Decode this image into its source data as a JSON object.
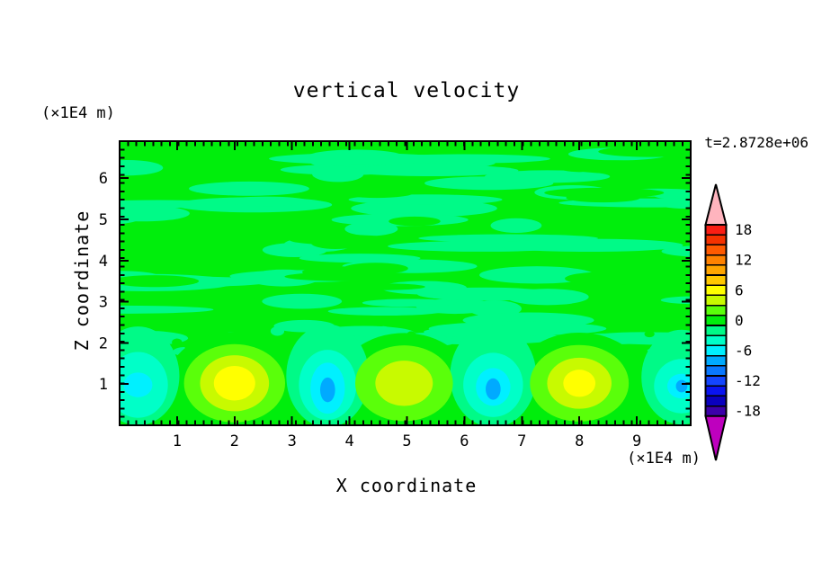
{
  "figure": {
    "title": "vertical velocity",
    "timestamp": "t=2.8728e+06",
    "background_color": "#ffffff"
  },
  "axes": {
    "x": {
      "title": "X coordinate",
      "unit": "(×1E4 m)",
      "min": 0,
      "max": 9.94,
      "major_ticks": [
        1,
        2,
        3,
        4,
        5,
        6,
        7,
        8,
        9
      ]
    },
    "z": {
      "title": "Z coordinate",
      "unit": "(×1E4 m)",
      "min": 0,
      "max": 6.9,
      "major_ticks": [
        1,
        2,
        3,
        4,
        5,
        6
      ]
    }
  },
  "colorbar": {
    "labels": [
      18,
      12,
      6,
      0,
      -6,
      -12,
      -18
    ],
    "over_color": "#FFB4BE",
    "under_color": "#BE00BE",
    "levels": [
      {
        "value": 18,
        "color": "#FA1E14"
      },
      {
        "value": 16,
        "color": "#F53200"
      },
      {
        "value": 14,
        "color": "#FF5A00"
      },
      {
        "value": 12,
        "color": "#FF8200"
      },
      {
        "value": 10,
        "color": "#FFA500"
      },
      {
        "value": 8,
        "color": "#FFC800"
      },
      {
        "value": 6,
        "color": "#FFFF00"
      },
      {
        "value": 4,
        "color": "#C8FA00"
      },
      {
        "value": 2,
        "color": "#5AFF0A"
      },
      {
        "value": 0,
        "color": "#00EE0C"
      },
      {
        "value": -2,
        "color": "#00FA87"
      },
      {
        "value": -4,
        "color": "#00FFC8"
      },
      {
        "value": -6,
        "color": "#00F0FF"
      },
      {
        "value": -8,
        "color": "#00AAFF"
      },
      {
        "value": -10,
        "color": "#0A78FF"
      },
      {
        "value": -12,
        "color": "#1446FF"
      },
      {
        "value": -14,
        "color": "#0A14F0"
      },
      {
        "value": -16,
        "color": "#0A00BE"
      },
      {
        "value": -18,
        "color": "#3C00AA"
      }
    ]
  },
  "chart_data": {
    "type": "heatmap",
    "subtype": "filled-contour",
    "title": "vertical velocity",
    "xlabel": "X coordinate (×1E4 m)",
    "ylabel": "Z coordinate (×1E4 m)",
    "xlim": [
      0,
      9.94
    ],
    "ylim": [
      0,
      6.9
    ],
    "annotations": [
      "t=2.8728e+06"
    ],
    "contour_interval": 2,
    "value_range": [
      -19,
      19
    ],
    "field_summary": "Near-zero vertical velocity (levels 0 and -2) in streaky horizontal bands for z > 2; row of alternating warm updraft and cool downdraft convective plumes centered near z ≈ 1",
    "texture": {
      "seed": 1234,
      "streaks": 64,
      "holes": 22,
      "speckles": 26,
      "base_color": "#00EE0C",
      "band_color": "#00FA87"
    },
    "warm_plumes": [
      {
        "x": 2.0,
        "z": 1.02,
        "peak": 6,
        "rings": [
          {
            "level": 2,
            "rx": 0.88,
            "rz": 0.95
          },
          {
            "level": 4,
            "rx": 0.6,
            "rz": 0.68
          },
          {
            "level": 6,
            "rx": 0.36,
            "rz": 0.42
          }
        ]
      },
      {
        "x": 4.95,
        "z": 1.02,
        "peak": 4,
        "rings": [
          {
            "level": 2,
            "rx": 0.85,
            "rz": 0.92
          },
          {
            "level": 4,
            "rx": 0.5,
            "rz": 0.55
          }
        ]
      },
      {
        "x": 8.0,
        "z": 1.02,
        "peak": 6,
        "rings": [
          {
            "level": 2,
            "rx": 0.86,
            "rz": 0.93
          },
          {
            "level": 4,
            "rx": 0.56,
            "rz": 0.62
          },
          {
            "level": 6,
            "rx": 0.28,
            "rz": 0.33
          }
        ]
      }
    ],
    "cool_plumes": [
      {
        "x": 0.32,
        "z": 0.98,
        "min": -6,
        "rings": [
          {
            "level": -2,
            "rx": 0.72,
            "rz": 1.2,
            "dz": 0.22
          },
          {
            "level": -4,
            "rx": 0.52,
            "rz": 0.8
          },
          {
            "level": -6,
            "rx": 0.25,
            "rz": 0.3
          }
        ]
      },
      {
        "x": 3.62,
        "z": 0.98,
        "min": -8,
        "rings": [
          {
            "level": -2,
            "rx": 0.72,
            "rz": 1.25,
            "dz": 0.22
          },
          {
            "level": -4,
            "rx": 0.5,
            "rz": 0.85
          },
          {
            "level": -6,
            "rx": 0.3,
            "rz": 0.62,
            "dz": -0.08
          },
          {
            "level": -8,
            "rx": 0.13,
            "rz": 0.3,
            "dz": -0.12
          }
        ]
      },
      {
        "x": 6.5,
        "z": 0.98,
        "min": -8,
        "rings": [
          {
            "level": -2,
            "rx": 0.75,
            "rz": 1.25,
            "dz": 0.22
          },
          {
            "level": -4,
            "rx": 0.52,
            "rz": 0.78
          },
          {
            "level": -6,
            "rx": 0.3,
            "rz": 0.46,
            "dz": -0.05
          },
          {
            "level": -8,
            "rx": 0.13,
            "rz": 0.26,
            "dz": -0.1
          }
        ]
      },
      {
        "x": 9.78,
        "z": 0.95,
        "min": -8,
        "rings": [
          {
            "level": -2,
            "rx": 0.7,
            "rz": 1.15,
            "dz": 0.22
          },
          {
            "level": -4,
            "rx": 0.48,
            "rz": 0.66
          },
          {
            "level": -6,
            "rx": 0.25,
            "rz": 0.3
          },
          {
            "level": -8,
            "rx": 0.1,
            "rz": 0.15
          }
        ]
      }
    ]
  }
}
